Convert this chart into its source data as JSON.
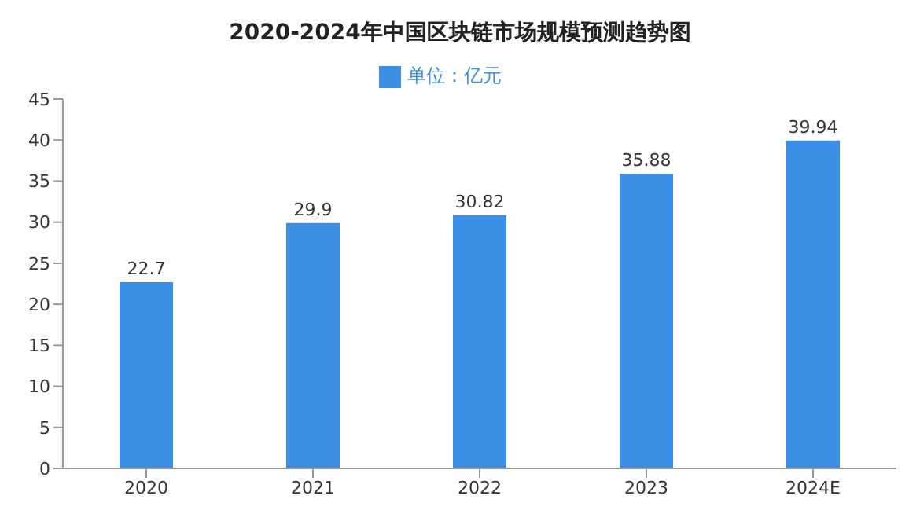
{
  "chart_data": {
    "type": "bar",
    "title": "2020-2024年中国区块链市场规模预测趋势图",
    "categories": [
      "2020",
      "2021",
      "2022",
      "2023",
      "2024E"
    ],
    "series": [
      {
        "name": "单位：亿元",
        "color": "#3a8ee6",
        "values": [
          22.7,
          29.9,
          30.82,
          35.88,
          39.94
        ]
      }
    ],
    "ylim": [
      0,
      45
    ],
    "yticks": [
      0,
      5,
      10,
      15,
      20,
      25,
      30,
      35,
      40,
      45
    ],
    "grid": false,
    "legend": "top",
    "data_labels": true
  }
}
